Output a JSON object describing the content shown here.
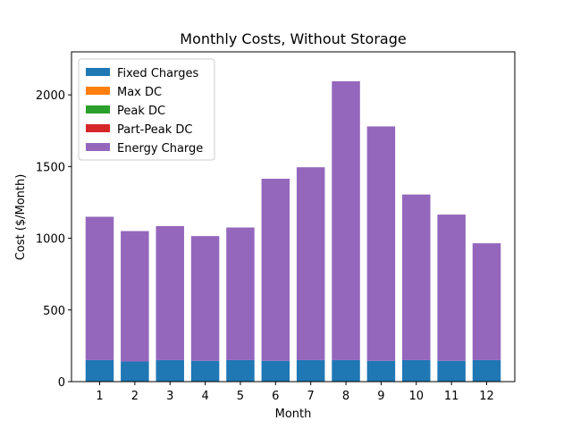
{
  "chart_data": {
    "type": "bar",
    "stacked": true,
    "title": "Monthly Costs, Without Storage",
    "xlabel": "Month",
    "ylabel": "Cost ($/Month)",
    "categories": [
      "1",
      "2",
      "3",
      "4",
      "5",
      "6",
      "7",
      "8",
      "9",
      "10",
      "11",
      "12"
    ],
    "ylim": [
      0,
      2300
    ],
    "yticks": [
      0,
      500,
      1000,
      1500,
      2000
    ],
    "grid": false,
    "legend_position": "top-left",
    "series": [
      {
        "name": "Fixed Charges",
        "color": "#1f77b4",
        "values": [
          150,
          140,
          150,
          145,
          150,
          145,
          150,
          150,
          145,
          150,
          145,
          150
        ]
      },
      {
        "name": "Max DC",
        "color": "#ff7f0e",
        "values": [
          0,
          0,
          0,
          0,
          0,
          0,
          0,
          0,
          0,
          0,
          0,
          0
        ]
      },
      {
        "name": "Peak DC",
        "color": "#2ca02c",
        "values": [
          0,
          0,
          0,
          0,
          0,
          0,
          0,
          0,
          0,
          0,
          0,
          0
        ]
      },
      {
        "name": "Part-Peak DC",
        "color": "#d62728",
        "values": [
          0,
          0,
          0,
          0,
          0,
          0,
          0,
          0,
          0,
          0,
          0,
          0
        ]
      },
      {
        "name": "Energy Charge",
        "color": "#9467bd",
        "values": [
          1000,
          910,
          935,
          870,
          925,
          1270,
          1345,
          1945,
          1635,
          1155,
          1020,
          815
        ]
      }
    ]
  }
}
